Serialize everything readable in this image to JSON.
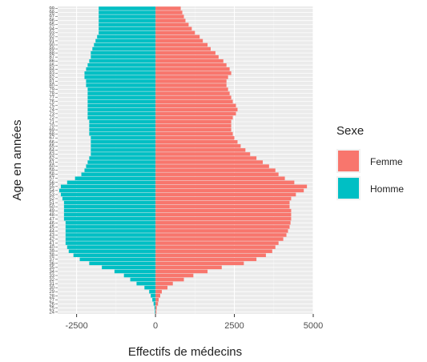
{
  "chart_data": {
    "type": "bar",
    "orientation": "horizontal",
    "stacking": "diverging",
    "xlabel": "Effectifs de médecins",
    "ylabel": "Age en années",
    "xlim": [
      -3100,
      5000
    ],
    "xticks": [
      -2500,
      0,
      2500,
      5000
    ],
    "xtick_labels": [
      "-2500",
      "0",
      "2500",
      "5000"
    ],
    "grid": true,
    "legend": {
      "title": "Sexe",
      "position": "right",
      "entries": [
        {
          "name": "Femme",
          "color": "#F8766D"
        },
        {
          "name": "Homme",
          "color": "#00BFC4"
        }
      ]
    },
    "categories": [
      "24",
      "25",
      "26",
      "27",
      "28",
      "29",
      "30",
      "31",
      "32",
      "33",
      "34",
      "35",
      "36",
      "37",
      "38",
      "39",
      "40",
      "41",
      "42",
      "43",
      "44",
      "45",
      "46",
      "47",
      "48",
      "49",
      "50",
      "51",
      "52",
      "53",
      "54",
      "55",
      "56",
      "57",
      "58",
      "59",
      "60",
      "61",
      "62",
      "63",
      "64",
      "65",
      "66",
      "67",
      "68",
      "69",
      "70",
      "71",
      "72",
      "73",
      "74",
      "75",
      "76",
      "77",
      "78",
      "79",
      "80",
      "81",
      "82",
      "83",
      "84",
      "85",
      "86",
      "87",
      "88",
      "89",
      "90",
      "91",
      "92",
      "93",
      "94",
      "95",
      "96",
      "97",
      "98",
      "99"
    ],
    "series": [
      {
        "name": "Femme",
        "color": "#F8766D",
        "values": [
          30,
          40,
          80,
          100,
          150,
          200,
          380,
          550,
          900,
          1200,
          1650,
          2100,
          2800,
          3200,
          3500,
          3700,
          3800,
          3900,
          4050,
          4150,
          4200,
          4250,
          4280,
          4300,
          4300,
          4300,
          4250,
          4250,
          4300,
          4450,
          4700,
          4800,
          4400,
          4100,
          3900,
          3800,
          3600,
          3400,
          3200,
          3000,
          2850,
          2700,
          2600,
          2500,
          2450,
          2400,
          2400,
          2400,
          2450,
          2550,
          2600,
          2550,
          2450,
          2400,
          2350,
          2300,
          2250,
          2250,
          2300,
          2400,
          2350,
          2250,
          2150,
          2000,
          1900,
          1750,
          1650,
          1500,
          1400,
          1250,
          1150,
          1050,
          950,
          900,
          850,
          800
        ]
      },
      {
        "name": "Homme",
        "color": "#00BFC4",
        "values": [
          -20,
          -30,
          -60,
          -100,
          -150,
          -200,
          -350,
          -600,
          -800,
          -1000,
          -1300,
          -1700,
          -2100,
          -2400,
          -2600,
          -2750,
          -2800,
          -2850,
          -2850,
          -2850,
          -2850,
          -2850,
          -2850,
          -2900,
          -2900,
          -2900,
          -2900,
          -2900,
          -2950,
          -3000,
          -3050,
          -3000,
          -2800,
          -2550,
          -2350,
          -2250,
          -2200,
          -2150,
          -2100,
          -2050,
          -2050,
          -2050,
          -2050,
          -2050,
          -2100,
          -2100,
          -2100,
          -2100,
          -2150,
          -2150,
          -2150,
          -2150,
          -2150,
          -2150,
          -2150,
          -2150,
          -2200,
          -2200,
          -2250,
          -2250,
          -2200,
          -2150,
          -2100,
          -2050,
          -2050,
          -2000,
          -1950,
          -1900,
          -1850,
          -1800,
          -1800,
          -1800,
          -1800,
          -1800,
          -1800,
          -1800
        ]
      }
    ]
  }
}
